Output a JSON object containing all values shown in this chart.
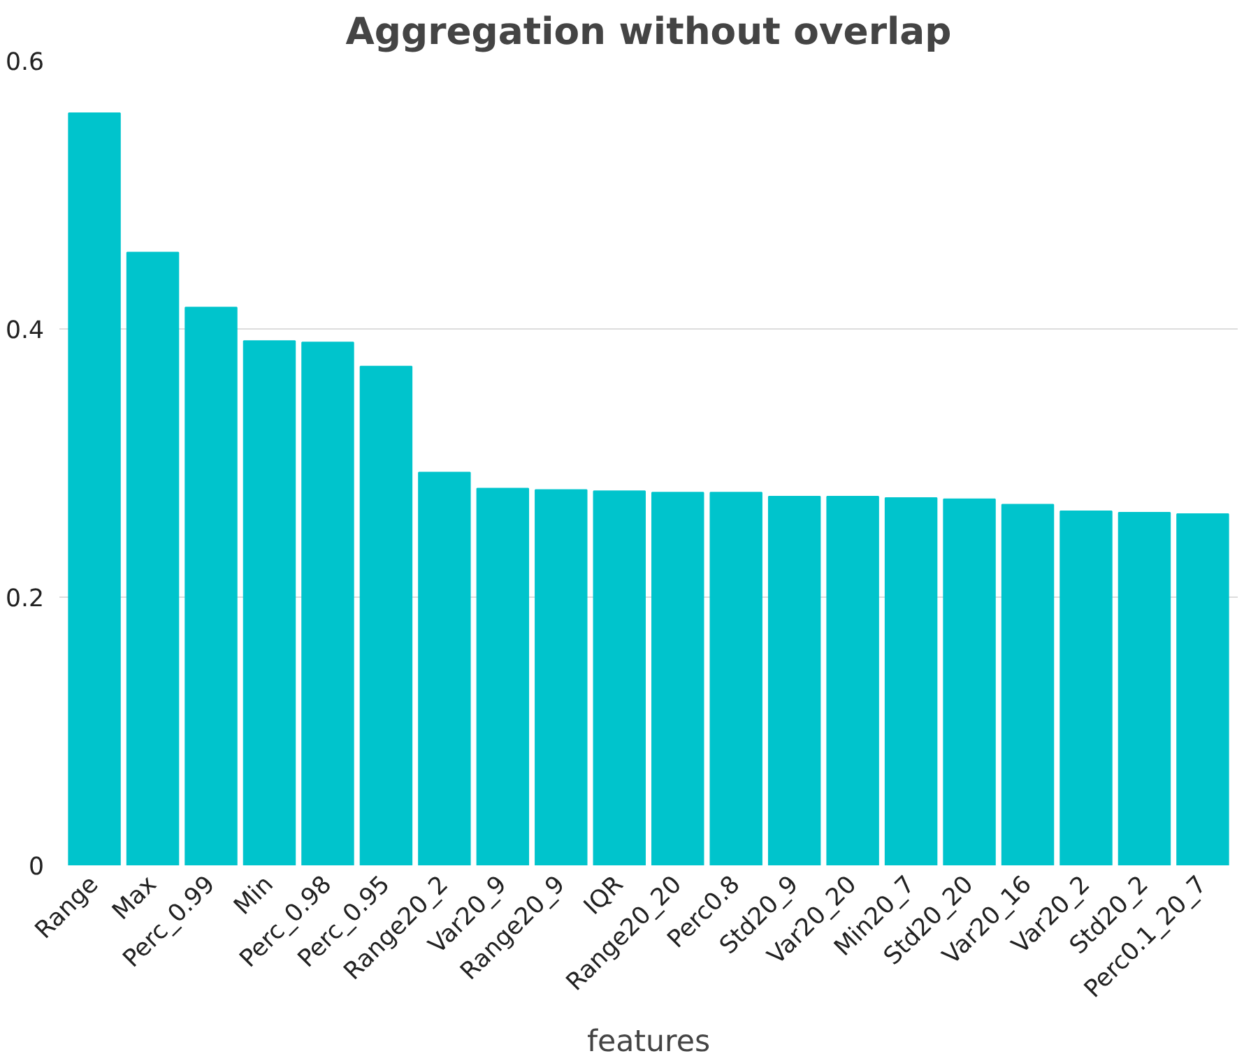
{
  "chart_data": {
    "type": "bar",
    "title": "Aggregation without overlap",
    "xlabel": "features",
    "categories": [
      "Range",
      "Max",
      "Perc_0.99",
      "Min",
      "Perc_0.98",
      "Perc_0.95",
      "Range20_2",
      "Var20_9",
      "Range20_9",
      "IQR",
      "Range20_20",
      "Perc0.8",
      "Std20_9",
      "Var20_20",
      "Min20_7",
      "Std20_20",
      "Var20_16",
      "Var20_2",
      "Std20_2",
      "Perc0.1_20_7"
    ],
    "values": [
      0.561,
      0.457,
      0.416,
      0.391,
      0.39,
      0.372,
      0.293,
      0.281,
      0.28,
      0.279,
      0.278,
      0.278,
      0.275,
      0.275,
      0.274,
      0.273,
      0.269,
      0.264,
      0.263,
      0.262
    ],
    "color": "#00c4cc",
    "ylim": [
      0,
      0.6
    ],
    "yticks": [
      0,
      0.2,
      0.4,
      0.6
    ],
    "grid": "y"
  }
}
